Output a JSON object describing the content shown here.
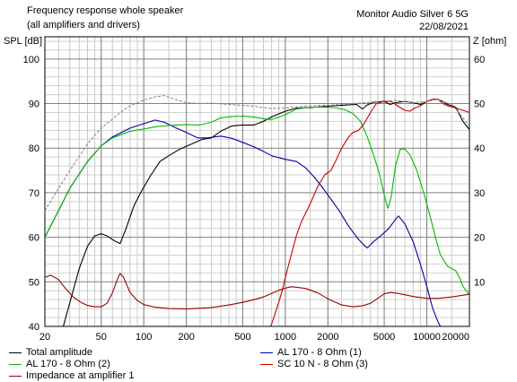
{
  "header": {
    "title_line1": "Frequency response whole speaker",
    "title_line2": "(all amplifiers and drivers)",
    "right_line1": "Monitor Audio Silver 6 5G",
    "right_line2": "22/08/2021"
  },
  "chart_data": {
    "type": "line",
    "title": "Frequency response whole speaker",
    "subtitle": "(all amplifiers and drivers)",
    "xlabel": "",
    "ylabel": "SPL [dB]",
    "y2label": "Z [ohm]",
    "x_scale": "log",
    "xlim": [
      20,
      20000
    ],
    "ylim": [
      40,
      105
    ],
    "y2lim": [
      0,
      65
    ],
    "grid": true,
    "x_ticks": [
      20,
      50,
      100,
      200,
      500,
      1000,
      2000,
      5000,
      10000,
      20000
    ],
    "x_tick_labels": [
      "20",
      "50",
      "100",
      "200",
      "500",
      "1000",
      "2000",
      "5000",
      "10000",
      "20000"
    ],
    "y_ticks": [
      40,
      50,
      60,
      70,
      80,
      90,
      100
    ],
    "y2_ticks": [
      10,
      20,
      30,
      40,
      50,
      60
    ],
    "legend_position": "bottom",
    "series": [
      {
        "name": "Total amplitude",
        "color": "#000000",
        "axis": "left",
        "points": [
          [
            20,
            37
          ],
          [
            27,
            40
          ],
          [
            35,
            53
          ],
          [
            40,
            58
          ],
          [
            45,
            60.3
          ],
          [
            50,
            60.8
          ],
          [
            55,
            60.3
          ],
          [
            62,
            59.2
          ],
          [
            68,
            58.6
          ],
          [
            75,
            62
          ],
          [
            85,
            67
          ],
          [
            95,
            70
          ],
          [
            110,
            73.5
          ],
          [
            130,
            77
          ],
          [
            150,
            78.3
          ],
          [
            180,
            79.8
          ],
          [
            220,
            81
          ],
          [
            260,
            82
          ],
          [
            300,
            82.3
          ],
          [
            350,
            83.8
          ],
          [
            420,
            85
          ],
          [
            500,
            85.2
          ],
          [
            600,
            85.2
          ],
          [
            700,
            86
          ],
          [
            800,
            87
          ],
          [
            1000,
            88.3
          ],
          [
            1200,
            89
          ],
          [
            1500,
            89.1
          ],
          [
            1800,
            89.3
          ],
          [
            2200,
            89.5
          ],
          [
            2800,
            89.7
          ],
          [
            3200,
            89.8
          ],
          [
            3500,
            88.8
          ],
          [
            3800,
            89.7
          ],
          [
            4200,
            90.3
          ],
          [
            5000,
            90.5
          ],
          [
            5500,
            89.8
          ],
          [
            6000,
            90.2
          ],
          [
            7000,
            90.5
          ],
          [
            8000,
            90.2
          ],
          [
            9000,
            89.8
          ],
          [
            10000,
            90.5
          ],
          [
            11000,
            91
          ],
          [
            12000,
            91
          ],
          [
            13000,
            90.5
          ],
          [
            14000,
            89.8
          ],
          [
            16000,
            89.2
          ],
          [
            18000,
            86
          ],
          [
            20000,
            84.2
          ]
        ]
      },
      {
        "name": "AL 170 - 8 Ohm (1)",
        "color": "#0000aa",
        "axis": "left",
        "points": [
          [
            20,
            60
          ],
          [
            25,
            66
          ],
          [
            30,
            71
          ],
          [
            40,
            77
          ],
          [
            50,
            80.5
          ],
          [
            60,
            82.5
          ],
          [
            80,
            84.5
          ],
          [
            100,
            85.5
          ],
          [
            120,
            86.3
          ],
          [
            140,
            85.8
          ],
          [
            170,
            84.5
          ],
          [
            200,
            83.5
          ],
          [
            240,
            82.3
          ],
          [
            280,
            82.3
          ],
          [
            350,
            82.7
          ],
          [
            420,
            82.2
          ],
          [
            500,
            81.3
          ],
          [
            600,
            80.3
          ],
          [
            700,
            79.3
          ],
          [
            800,
            78.3
          ],
          [
            1000,
            77.5
          ],
          [
            1200,
            77
          ],
          [
            1400,
            75.5
          ],
          [
            1600,
            73.5
          ],
          [
            1800,
            71.5
          ],
          [
            2000,
            69.5
          ],
          [
            2400,
            66
          ],
          [
            2800,
            62.5
          ],
          [
            3200,
            60
          ],
          [
            3600,
            58.2
          ],
          [
            3800,
            57.6
          ],
          [
            4200,
            59
          ],
          [
            4800,
            60.5
          ],
          [
            5400,
            62
          ],
          [
            6000,
            64
          ],
          [
            6300,
            64.8
          ],
          [
            7000,
            63
          ],
          [
            8000,
            59
          ],
          [
            9000,
            54
          ],
          [
            10000,
            49
          ],
          [
            11000,
            44
          ],
          [
            12000,
            41
          ],
          [
            13000,
            39
          ]
        ]
      },
      {
        "name": "AL 170 - 8 Ohm (2)",
        "color": "#00bb00",
        "axis": "left",
        "points": [
          [
            20,
            60
          ],
          [
            25,
            66
          ],
          [
            30,
            71
          ],
          [
            40,
            77
          ],
          [
            50,
            80.5
          ],
          [
            60,
            82.3
          ],
          [
            80,
            83.8
          ],
          [
            100,
            84.3
          ],
          [
            120,
            84.8
          ],
          [
            150,
            85.1
          ],
          [
            200,
            85.3
          ],
          [
            250,
            85.2
          ],
          [
            300,
            85.8
          ],
          [
            350,
            86.8
          ],
          [
            420,
            87.1
          ],
          [
            500,
            87.2
          ],
          [
            600,
            87
          ],
          [
            700,
            86.6
          ],
          [
            800,
            86.4
          ],
          [
            1000,
            87.5
          ],
          [
            1200,
            88.8
          ],
          [
            1500,
            89.2
          ],
          [
            1800,
            89.2
          ],
          [
            2200,
            89.1
          ],
          [
            2600,
            88.7
          ],
          [
            3000,
            87.8
          ],
          [
            3400,
            86
          ],
          [
            3800,
            82.5
          ],
          [
            4200,
            78.5
          ],
          [
            4600,
            74.5
          ],
          [
            5000,
            69.5
          ],
          [
            5300,
            66.5
          ],
          [
            5600,
            69
          ],
          [
            6000,
            76
          ],
          [
            6500,
            79.8
          ],
          [
            7000,
            79.8
          ],
          [
            7600,
            78.5
          ],
          [
            8500,
            75
          ],
          [
            9500,
            70
          ],
          [
            10500,
            65
          ],
          [
            11500,
            60
          ],
          [
            12500,
            56
          ],
          [
            14000,
            53.5
          ],
          [
            15000,
            53
          ],
          [
            16000,
            52.5
          ],
          [
            17000,
            51
          ],
          [
            18000,
            49
          ],
          [
            20000,
            47
          ]
        ]
      },
      {
        "name": "SC 10 N - 8 Ohm (3)",
        "color": "#cc0000",
        "axis": "left",
        "points": [
          [
            700,
            37
          ],
          [
            800,
            40.5
          ],
          [
            850,
            43
          ],
          [
            900,
            45.5
          ],
          [
            950,
            48
          ],
          [
            1000,
            51
          ],
          [
            1100,
            56
          ],
          [
            1200,
            60.5
          ],
          [
            1300,
            63.5
          ],
          [
            1500,
            67.5
          ],
          [
            1700,
            71.5
          ],
          [
            1900,
            74
          ],
          [
            2100,
            75
          ],
          [
            2300,
            77.5
          ],
          [
            2500,
            80
          ],
          [
            2800,
            82.5
          ],
          [
            3000,
            83.5
          ],
          [
            3300,
            84
          ],
          [
            3600,
            85.5
          ],
          [
            4000,
            88
          ],
          [
            4400,
            90
          ],
          [
            5000,
            90.5
          ],
          [
            5600,
            90.5
          ],
          [
            6200,
            89.5
          ],
          [
            7000,
            88.5
          ],
          [
            7600,
            88.3
          ],
          [
            8200,
            89
          ],
          [
            9000,
            89.5
          ],
          [
            10000,
            90.5
          ],
          [
            11000,
            91
          ],
          [
            12000,
            91
          ],
          [
            13000,
            90
          ],
          [
            14000,
            89.5
          ],
          [
            16000,
            89
          ],
          [
            18000,
            88.5
          ],
          [
            20000,
            88
          ]
        ]
      },
      {
        "name": "Impedance at amplifier 1",
        "color": "#990000",
        "axis": "right",
        "points": [
          [
            20,
            11
          ],
          [
            22,
            11.5
          ],
          [
            25,
            10.5
          ],
          [
            28,
            8.5
          ],
          [
            32,
            6.5
          ],
          [
            36,
            5.4
          ],
          [
            40,
            4.7
          ],
          [
            45,
            4.4
          ],
          [
            50,
            4.4
          ],
          [
            55,
            5.2
          ],
          [
            60,
            7.5
          ],
          [
            65,
            10.5
          ],
          [
            68,
            11.9
          ],
          [
            72,
            11
          ],
          [
            80,
            7.6
          ],
          [
            90,
            5.8
          ],
          [
            100,
            4.9
          ],
          [
            120,
            4.3
          ],
          [
            150,
            4
          ],
          [
            200,
            3.9
          ],
          [
            300,
            4.2
          ],
          [
            400,
            4.8
          ],
          [
            500,
            5.4
          ],
          [
            600,
            6
          ],
          [
            700,
            6.6
          ],
          [
            800,
            7.4
          ],
          [
            900,
            8.1
          ],
          [
            1000,
            8.6
          ],
          [
            1100,
            8.9
          ],
          [
            1200,
            8.8
          ],
          [
            1400,
            8.5
          ],
          [
            1700,
            7.5
          ],
          [
            2000,
            6.2
          ],
          [
            2500,
            4.8
          ],
          [
            3000,
            4.4
          ],
          [
            3500,
            4.6
          ],
          [
            4000,
            5.2
          ],
          [
            4500,
            6.3
          ],
          [
            5000,
            7.3
          ],
          [
            5500,
            7.6
          ],
          [
            6000,
            7.5
          ],
          [
            7000,
            7.1
          ],
          [
            8000,
            6.7
          ],
          [
            10000,
            6.3
          ],
          [
            12000,
            6.3
          ],
          [
            15000,
            6.6
          ],
          [
            18000,
            7
          ],
          [
            20000,
            7.2
          ]
        ]
      },
      {
        "name": "",
        "color": "#888888",
        "style": "dashed",
        "axis": "left",
        "points": [
          [
            20,
            66
          ],
          [
            25,
            71
          ],
          [
            30,
            75
          ],
          [
            40,
            81
          ],
          [
            50,
            84.5
          ],
          [
            60,
            86.5
          ],
          [
            70,
            88.3
          ],
          [
            80,
            89.5
          ],
          [
            100,
            90.8
          ],
          [
            120,
            91.5
          ],
          [
            140,
            91.8
          ],
          [
            160,
            91.1
          ],
          [
            200,
            90.2
          ],
          [
            250,
            90
          ],
          [
            300,
            90.1
          ],
          [
            400,
            89.8
          ],
          [
            500,
            89.6
          ],
          [
            600,
            89.4
          ],
          [
            700,
            89.1
          ],
          [
            800,
            88.9
          ],
          [
            1000,
            89
          ],
          [
            1200,
            89.3
          ],
          [
            1500,
            89.5
          ],
          [
            2000,
            89.6
          ],
          [
            2500,
            89.8
          ],
          [
            3000,
            90
          ],
          [
            4000,
            90.3
          ],
          [
            5000,
            90.6
          ],
          [
            6000,
            90.7
          ],
          [
            7000,
            90.5
          ],
          [
            8000,
            90.2
          ],
          [
            10000,
            90.5
          ],
          [
            12000,
            91
          ],
          [
            13000,
            90.5
          ],
          [
            15000,
            89.8
          ],
          [
            18000,
            86.8
          ],
          [
            20000,
            85
          ]
        ]
      }
    ]
  },
  "legend": {
    "items": [
      {
        "label": "Total amplitude",
        "color": "#000000"
      },
      {
        "label": "AL 170 - 8 Ohm (1)",
        "color": "#0000aa"
      },
      {
        "label": "AL 170 - 8 Ohm (2)",
        "color": "#00bb00"
      },
      {
        "label": "SC 10 N - 8 Ohm (3)",
        "color": "#cc0000"
      },
      {
        "label": "Impedance at amplifier 1",
        "color": "#990000"
      }
    ]
  }
}
